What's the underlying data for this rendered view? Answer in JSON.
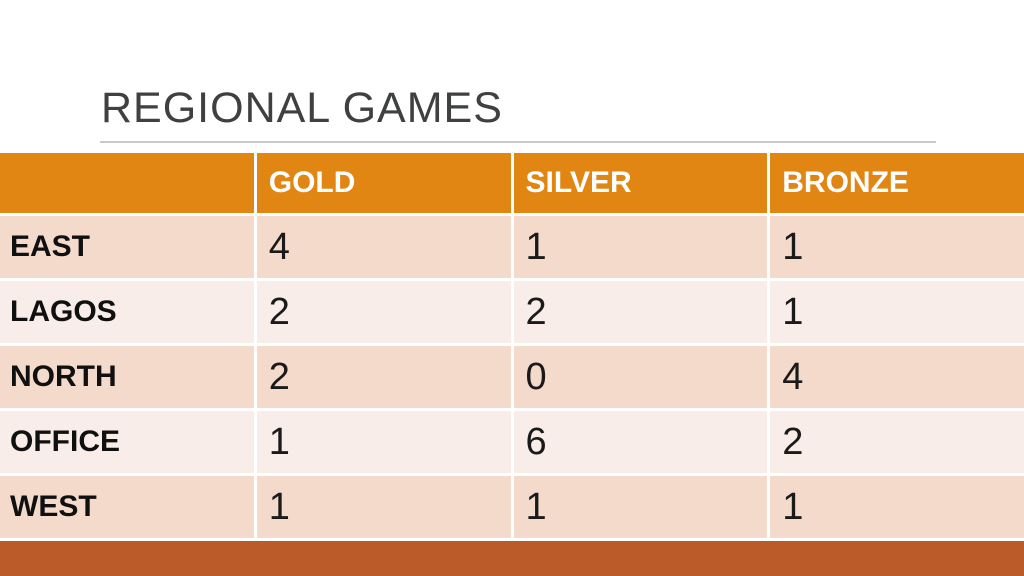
{
  "slide": {
    "title": "REGIONAL GAMES"
  },
  "colors": {
    "header_orange": "#e18513",
    "footer_rust": "#bc5b2a",
    "row_dark": "#f4dacb",
    "row_light": "#f8ede8",
    "title_gray": "#3f4040",
    "rule_gray": "#c9c9c9",
    "header_text": "#ffffff",
    "body_text": "#1a1a1a"
  },
  "table": {
    "columns": [
      "",
      "GOLD",
      "SILVER",
      "BRONZE"
    ],
    "rows": [
      {
        "region": "EAST",
        "gold": "4",
        "silver": "1",
        "bronze": "1"
      },
      {
        "region": "LAGOS",
        "gold": "2",
        "silver": "2",
        "bronze": "1"
      },
      {
        "region": "NORTH",
        "gold": "2",
        "silver": "0",
        "bronze": "4"
      },
      {
        "region": "OFFICE",
        "gold": "1",
        "silver": "6",
        "bronze": "2"
      },
      {
        "region": "WEST",
        "gold": "1",
        "silver": "1",
        "bronze": "1"
      }
    ]
  },
  "chart_data": {
    "type": "table",
    "title": "REGIONAL GAMES",
    "categories": [
      "EAST",
      "LAGOS",
      "NORTH",
      "OFFICE",
      "WEST"
    ],
    "series": [
      {
        "name": "GOLD",
        "values": [
          4,
          2,
          2,
          1,
          1
        ]
      },
      {
        "name": "SILVER",
        "values": [
          1,
          2,
          0,
          6,
          1
        ]
      },
      {
        "name": "BRONZE",
        "values": [
          1,
          1,
          4,
          2,
          1
        ]
      }
    ]
  }
}
